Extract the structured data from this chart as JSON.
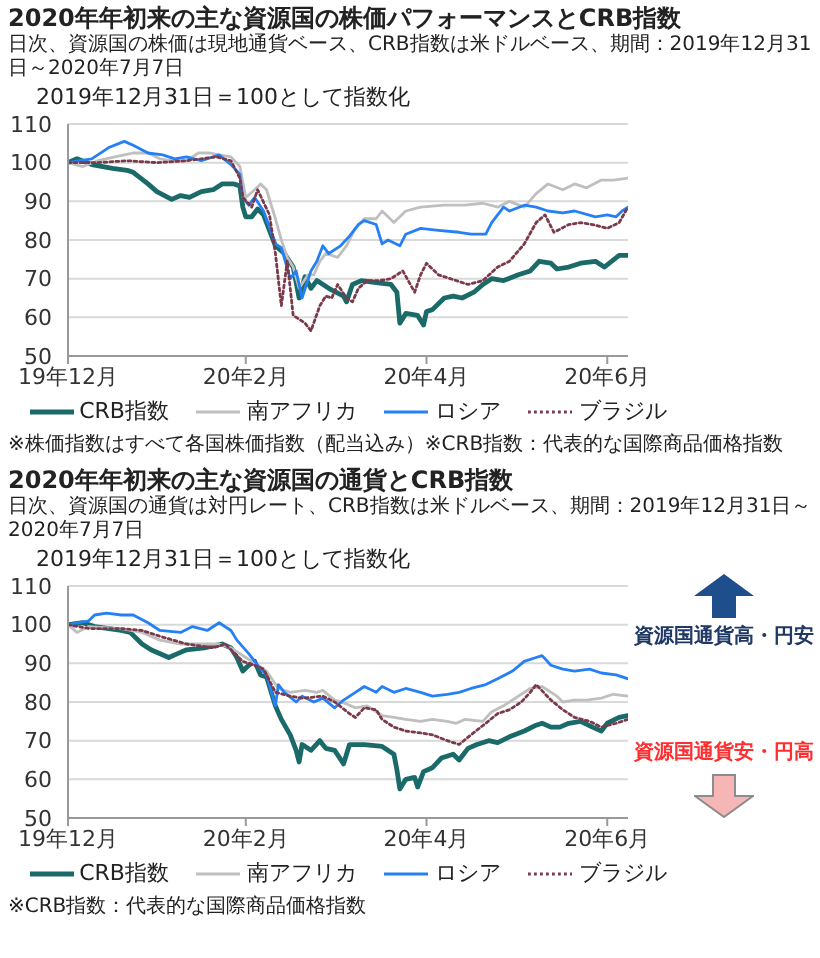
{
  "chart_data": [
    {
      "type": "line",
      "title": "2020年年初来の主な資源国の株価パフォーマンスとCRB指数",
      "subtitle": "日次、資源国の株価は現地通貨ベース、CRB指数は米ドルベース、期間：2019年12月31日～2020年7月7日",
      "ylabel": "2019年12月31日＝100として指数化",
      "xlim": [
        "2019-12-31",
        "2020-07-07"
      ],
      "xticks": [
        {
          "value": "2019-12-31",
          "label": "19年12月"
        },
        {
          "value": "2020-02-29",
          "label": "20年2月"
        },
        {
          "value": "2020-04-30",
          "label": "20年4月"
        },
        {
          "value": "2020-06-30",
          "label": "20年6月"
        }
      ],
      "ylim": [
        50,
        110
      ],
      "yticks": [
        50,
        60,
        70,
        80,
        90,
        100,
        110
      ],
      "grid": "y",
      "legend": "bottom",
      "series": [
        {
          "name": "CRB指数",
          "color": "#1b6a6a",
          "x": [
            "2019-12-31",
            "2020-01-03",
            "2020-01-08",
            "2020-01-15",
            "2020-01-20",
            "2020-01-22",
            "2020-01-27",
            "2020-01-30",
            "2020-02-04",
            "2020-02-07",
            "2020-02-10",
            "2020-02-14",
            "2020-02-18",
            "2020-02-21",
            "2020-02-25",
            "2020-02-27",
            "2020-02-28",
            "2020-02-29",
            "2020-03-02",
            "2020-03-04",
            "2020-03-06",
            "2020-03-10",
            "2020-03-13",
            "2020-03-16",
            "2020-03-18",
            "2020-03-20",
            "2020-03-22",
            "2020-03-24",
            "2020-03-28",
            "2020-04-02",
            "2020-04-03",
            "2020-04-05",
            "2020-04-08",
            "2020-04-13",
            "2020-04-18",
            "2020-04-20",
            "2020-04-21",
            "2020-04-23",
            "2020-04-27",
            "2020-04-29",
            "2020-04-30",
            "2020-05-02",
            "2020-05-06",
            "2020-05-09",
            "2020-05-12",
            "2020-05-16",
            "2020-05-19",
            "2020-05-22",
            "2020-05-26",
            "2020-05-31",
            "2020-06-04",
            "2020-06-07",
            "2020-06-11",
            "2020-06-13",
            "2020-06-17",
            "2020-06-21",
            "2020-06-26",
            "2020-06-29",
            "2020-07-04",
            "2020-07-07"
          ],
          "values": [
            100,
            101,
            99.5,
            98.5,
            98,
            97.5,
            94.5,
            92.5,
            90.5,
            91.5,
            91,
            92.5,
            93,
            94.5,
            94.5,
            94,
            88.5,
            86,
            86,
            88,
            86.5,
            78.5,
            76.5,
            73,
            65,
            70.5,
            67.5,
            69.5,
            67.5,
            65.5,
            64,
            68.5,
            69.5,
            69,
            68.5,
            66.5,
            58.5,
            61,
            60.5,
            58,
            61.5,
            62,
            65,
            65.5,
            65,
            66.5,
            68.5,
            70,
            69.5,
            71,
            72,
            74.5,
            74,
            72.5,
            73,
            74,
            74.5,
            73,
            76,
            76
          ]
        },
        {
          "name": "南アフリカ",
          "color": "#bfbfbf",
          "x": [
            "2019-12-31",
            "2020-01-05",
            "2020-01-10",
            "2020-01-19",
            "2020-01-22",
            "2020-01-27",
            "2020-01-31",
            "2020-02-04",
            "2020-02-09",
            "2020-02-13",
            "2020-02-17",
            "2020-02-20",
            "2020-02-24",
            "2020-02-27",
            "2020-02-29",
            "2020-03-03",
            "2020-03-05",
            "2020-03-07",
            "2020-03-10",
            "2020-03-12",
            "2020-03-14",
            "2020-03-16",
            "2020-03-18",
            "2020-03-21",
            "2020-03-23",
            "2020-03-25",
            "2020-03-27",
            "2020-03-31",
            "2020-04-03",
            "2020-04-06",
            "2020-04-09",
            "2020-04-13",
            "2020-04-15",
            "2020-04-19",
            "2020-04-23",
            "2020-04-28",
            "2020-05-06",
            "2020-05-13",
            "2020-05-19",
            "2020-05-24",
            "2020-05-28",
            "2020-06-02",
            "2020-06-06",
            "2020-06-10",
            "2020-06-15",
            "2020-06-19",
            "2020-06-23",
            "2020-06-28",
            "2020-07-02",
            "2020-07-07"
          ],
          "values": [
            100,
            99,
            100.5,
            102,
            102.5,
            102.5,
            101,
            100.5,
            100.5,
            102.5,
            102.5,
            102,
            101.5,
            99,
            91,
            93,
            94.5,
            93,
            85.5,
            80,
            75.5,
            73,
            67.5,
            71,
            71,
            74.5,
            76.5,
            75.5,
            78.5,
            83,
            85.5,
            85.5,
            87.5,
            84.5,
            87.5,
            88.5,
            89,
            89,
            89.5,
            88.5,
            90,
            88.5,
            92,
            94.5,
            93,
            94.5,
            93.5,
            95.5,
            95.5,
            96
          ]
        },
        {
          "name": "ロシア",
          "color": "#2680f5",
          "x": [
            "2019-12-31",
            "2020-01-04",
            "2020-01-08",
            "2020-01-14",
            "2020-01-19",
            "2020-01-22",
            "2020-01-27",
            "2020-02-01",
            "2020-02-05",
            "2020-02-09",
            "2020-02-14",
            "2020-02-20",
            "2020-02-24",
            "2020-02-27",
            "2020-02-28",
            "2020-03-01",
            "2020-03-03",
            "2020-03-06",
            "2020-03-10",
            "2020-03-12",
            "2020-03-15",
            "2020-03-17",
            "2020-03-19",
            "2020-03-22",
            "2020-03-24",
            "2020-03-26",
            "2020-03-28",
            "2020-04-01",
            "2020-04-04",
            "2020-04-07",
            "2020-04-09",
            "2020-04-13",
            "2020-04-15",
            "2020-04-17",
            "2020-04-21",
            "2020-04-23",
            "2020-04-28",
            "2020-05-04",
            "2020-05-11",
            "2020-05-15",
            "2020-05-20",
            "2020-05-22",
            "2020-05-26",
            "2020-05-28",
            "2020-06-02",
            "2020-06-06",
            "2020-06-10",
            "2020-06-15",
            "2020-06-19",
            "2020-06-26",
            "2020-06-30",
            "2020-07-03",
            "2020-07-05",
            "2020-07-07"
          ],
          "values": [
            100,
            100.5,
            101,
            104,
            105.5,
            104.5,
            102.5,
            102,
            101,
            101.5,
            100.5,
            102,
            99.5,
            97,
            91,
            89,
            91,
            87.5,
            79,
            78,
            70,
            72,
            65,
            72,
            74.5,
            78.5,
            76.5,
            78.5,
            81,
            84,
            85,
            84,
            79,
            80,
            78.5,
            81.5,
            83,
            82.5,
            82,
            81.5,
            81.5,
            84.5,
            88.5,
            87.5,
            89,
            88.5,
            87.5,
            87,
            87.5,
            86,
            86.5,
            86,
            87.5,
            88.5
          ]
        },
        {
          "name": "ブラジル",
          "color": "#7b3a4a",
          "line_style": "dotted",
          "x": [
            "2019-12-31",
            "2020-01-10",
            "2020-01-20",
            "2020-01-30",
            "2020-02-09",
            "2020-02-14",
            "2020-02-19",
            "2020-02-24",
            "2020-02-27",
            "2020-02-28",
            "2020-03-02",
            "2020-03-04",
            "2020-03-08",
            "2020-03-10",
            "2020-03-12",
            "2020-03-14",
            "2020-03-16",
            "2020-03-18",
            "2020-03-20",
            "2020-03-22",
            "2020-03-25",
            "2020-03-27",
            "2020-03-29",
            "2020-03-31",
            "2020-04-03",
            "2020-04-05",
            "2020-04-07",
            "2020-04-10",
            "2020-04-14",
            "2020-04-18",
            "2020-04-22",
            "2020-04-26",
            "2020-04-28",
            "2020-04-30",
            "2020-05-04",
            "2020-05-08",
            "2020-05-14",
            "2020-05-19",
            "2020-05-24",
            "2020-05-28",
            "2020-06-02",
            "2020-06-06",
            "2020-06-09",
            "2020-06-12",
            "2020-06-17",
            "2020-06-21",
            "2020-06-25",
            "2020-06-30",
            "2020-07-04",
            "2020-07-07"
          ],
          "values": [
            100,
            100,
            100.5,
            100,
            100.5,
            101,
            101.5,
            100.5,
            96,
            91,
            88.5,
            93,
            86.5,
            76.5,
            63,
            74.5,
            60.5,
            59.5,
            58.5,
            56.5,
            63,
            65.5,
            65,
            68.5,
            65,
            64,
            67.5,
            69.5,
            69.5,
            70,
            72,
            66.5,
            71,
            74,
            71,
            70,
            68.5,
            69.5,
            73,
            74.5,
            79,
            84.5,
            86.5,
            82,
            84,
            84.5,
            84,
            83,
            84.5,
            88.5
          ]
        }
      ],
      "annotations": [
        "※株価指数はすべて各国株価指数（配当込み）※CRB指数：代表的な国際商品価格指数"
      ]
    },
    {
      "type": "line",
      "title": "2020年年初来の主な資源国の通貨とCRB指数",
      "subtitle": "日次、資源国の通貨は対円レート、CRB指数は米ドルベース、期間：2019年12月31日～2020年7月7日",
      "ylabel": "2019年12月31日＝100として指数化",
      "xlim": [
        "2019-12-31",
        "2020-07-07"
      ],
      "xticks": [
        {
          "value": "2019-12-31",
          "label": "19年12月"
        },
        {
          "value": "2020-02-29",
          "label": "20年2月"
        },
        {
          "value": "2020-04-30",
          "label": "20年4月"
        },
        {
          "value": "2020-06-30",
          "label": "20年6月"
        }
      ],
      "ylim": [
        50,
        110
      ],
      "yticks": [
        50,
        60,
        70,
        80,
        90,
        100,
        110
      ],
      "grid": "y",
      "legend": "bottom",
      "series": [
        {
          "name": "CRB指数",
          "color": "#1b6a6a",
          "x": [
            "2019-12-31",
            "2020-01-05",
            "2020-01-09",
            "2020-01-18",
            "2020-01-21",
            "2020-01-25",
            "2020-01-28",
            "2020-02-03",
            "2020-02-06",
            "2020-02-09",
            "2020-02-15",
            "2020-02-21",
            "2020-02-24",
            "2020-02-26",
            "2020-02-28",
            "2020-03-01",
            "2020-03-03",
            "2020-03-05",
            "2020-03-07",
            "2020-03-10",
            "2020-03-12",
            "2020-03-15",
            "2020-03-17",
            "2020-03-18",
            "2020-03-19",
            "2020-03-22",
            "2020-03-25",
            "2020-03-27",
            "2020-03-30",
            "2020-04-02",
            "2020-04-04",
            "2020-04-09",
            "2020-04-15",
            "2020-04-19",
            "2020-04-20",
            "2020-04-21",
            "2020-04-23",
            "2020-04-26",
            "2020-04-27",
            "2020-04-29",
            "2020-05-02",
            "2020-05-05",
            "2020-05-09",
            "2020-05-11",
            "2020-05-14",
            "2020-05-17",
            "2020-05-21",
            "2020-05-24",
            "2020-05-28",
            "2020-06-02",
            "2020-06-06",
            "2020-06-08",
            "2020-06-11",
            "2020-06-14",
            "2020-06-17",
            "2020-06-21",
            "2020-06-25",
            "2020-06-28",
            "2020-06-30",
            "2020-07-04",
            "2020-07-07"
          ],
          "values": [
            100,
            100.5,
            99.5,
            98.5,
            98,
            95,
            93.5,
            91.5,
            92.5,
            93.5,
            94,
            95,
            94,
            91.5,
            88,
            89.5,
            90.5,
            87,
            86.5,
            79,
            75.5,
            71.5,
            67.5,
            64.5,
            69,
            67.5,
            70,
            68,
            67.5,
            64,
            69,
            69,
            68.5,
            66.5,
            62.5,
            57.5,
            60,
            60.5,
            58,
            62,
            63,
            65.5,
            66.5,
            65,
            68,
            69,
            70,
            69.5,
            71,
            72.5,
            74,
            74.5,
            73.5,
            73.5,
            74.5,
            75,
            73.5,
            72.5,
            74.5,
            76,
            76.5
          ]
        },
        {
          "name": "南アフリカ",
          "color": "#bfbfbf",
          "x": [
            "2019-12-31",
            "2020-01-03",
            "2020-01-07",
            "2020-01-18",
            "2020-01-25",
            "2020-01-31",
            "2020-02-07",
            "2020-02-13",
            "2020-02-20",
            "2020-02-24",
            "2020-02-29",
            "2020-03-04",
            "2020-03-07",
            "2020-03-11",
            "2020-03-15",
            "2020-03-20",
            "2020-03-24",
            "2020-03-26",
            "2020-03-30",
            "2020-04-03",
            "2020-04-06",
            "2020-04-10",
            "2020-04-15",
            "2020-04-19",
            "2020-04-23",
            "2020-04-28",
            "2020-05-02",
            "2020-05-07",
            "2020-05-10",
            "2020-05-13",
            "2020-05-19",
            "2020-05-22",
            "2020-05-26",
            "2020-05-31",
            "2020-06-04",
            "2020-06-08",
            "2020-06-13",
            "2020-06-15",
            "2020-06-19",
            "2020-06-23",
            "2020-06-28",
            "2020-07-02",
            "2020-07-07"
          ],
          "values": [
            100,
            98,
            99.5,
            99,
            98,
            96,
            95,
            95,
            95,
            94,
            91.5,
            89.5,
            88,
            83.5,
            82.5,
            83,
            82.5,
            83,
            80.5,
            79.5,
            78.5,
            79,
            76.5,
            76,
            75.5,
            75,
            75.5,
            75,
            74.5,
            75.5,
            75,
            77.5,
            79,
            81.5,
            83.5,
            84,
            81.5,
            80,
            80.5,
            80.5,
            81,
            82,
            81.5
          ]
        },
        {
          "name": "ロシア",
          "color": "#2680f5",
          "x": [
            "2019-12-31",
            "2020-01-07",
            "2020-01-09",
            "2020-01-13",
            "2020-01-18",
            "2020-01-22",
            "2020-01-27",
            "2020-01-31",
            "2020-02-07",
            "2020-02-11",
            "2020-02-16",
            "2020-02-20",
            "2020-02-24",
            "2020-02-26",
            "2020-03-01",
            "2020-03-04",
            "2020-03-07",
            "2020-03-10",
            "2020-03-11",
            "2020-03-13",
            "2020-03-17",
            "2020-03-19",
            "2020-03-23",
            "2020-03-26",
            "2020-03-30",
            "2020-04-02",
            "2020-04-06",
            "2020-04-09",
            "2020-04-13",
            "2020-04-15",
            "2020-04-19",
            "2020-04-23",
            "2020-04-28",
            "2020-05-02",
            "2020-05-07",
            "2020-05-11",
            "2020-05-15",
            "2020-05-20",
            "2020-05-24",
            "2020-05-29",
            "2020-06-02",
            "2020-06-06",
            "2020-06-08",
            "2020-06-11",
            "2020-06-15",
            "2020-06-19",
            "2020-06-24",
            "2020-06-28",
            "2020-07-03",
            "2020-07-07"
          ],
          "values": [
            100,
            101,
            102.5,
            103,
            102.5,
            102.5,
            100.5,
            98.5,
            98,
            99.5,
            98.5,
            100.5,
            98.5,
            96,
            92.5,
            89.5,
            87,
            79,
            84.5,
            82.5,
            80,
            81.5,
            80,
            81,
            78.5,
            80.5,
            82.5,
            84,
            82.5,
            84,
            82.5,
            83.5,
            82.5,
            81.5,
            82,
            82.5,
            83.5,
            84.5,
            86,
            88,
            90.5,
            91.5,
            92,
            89.5,
            88.5,
            88,
            88.5,
            87.5,
            87,
            86
          ]
        },
        {
          "name": "ブラジル",
          "color": "#7b3a4a",
          "line_style": "dotted",
          "x": [
            "2019-12-31",
            "2020-01-07",
            "2020-01-18",
            "2020-01-25",
            "2020-01-31",
            "2020-02-09",
            "2020-02-18",
            "2020-02-22",
            "2020-02-28",
            "2020-03-03",
            "2020-03-06",
            "2020-03-10",
            "2020-03-15",
            "2020-03-19",
            "2020-03-26",
            "2020-03-30",
            "2020-04-04",
            "2020-04-06",
            "2020-04-09",
            "2020-04-13",
            "2020-04-15",
            "2020-04-19",
            "2020-04-23",
            "2020-04-28",
            "2020-05-02",
            "2020-05-07",
            "2020-05-11",
            "2020-05-15",
            "2020-05-20",
            "2020-05-24",
            "2020-05-28",
            "2020-06-01",
            "2020-06-04",
            "2020-06-06",
            "2020-06-11",
            "2020-06-15",
            "2020-06-19",
            "2020-06-24",
            "2020-06-28",
            "2020-07-03",
            "2020-07-07"
          ],
          "values": [
            100,
            99,
            99,
            98.5,
            97,
            95,
            94,
            95,
            90.5,
            89.5,
            88.5,
            82.5,
            81.5,
            81,
            81.5,
            80,
            77,
            76,
            78.5,
            78,
            75.5,
            73.5,
            72.5,
            72,
            71.5,
            70,
            69,
            71.5,
            74.5,
            77,
            78,
            80,
            82.5,
            84.5,
            80.5,
            78,
            76,
            75,
            73.5,
            74.5,
            75.5
          ]
        }
      ],
      "annotations": [
        "資源国通貨高・円安",
        "資源国通貨安・円高",
        "※CRB指数：代表的な国際商品価格指数"
      ]
    }
  ]
}
